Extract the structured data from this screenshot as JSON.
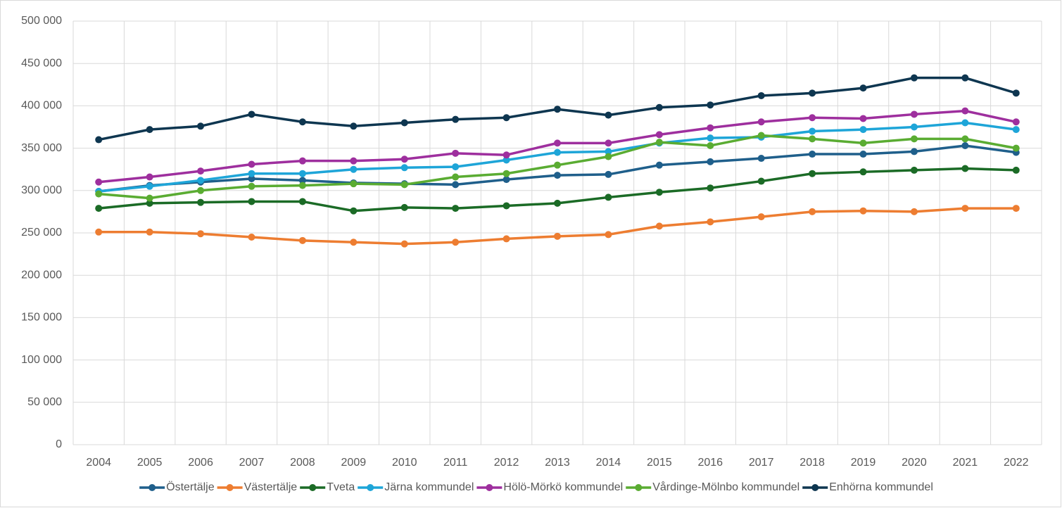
{
  "chart_data": {
    "type": "line",
    "categories": [
      "2004",
      "2005",
      "2006",
      "2007",
      "2008",
      "2009",
      "2010",
      "2011",
      "2012",
      "2013",
      "2014",
      "2015",
      "2016",
      "2017",
      "2018",
      "2019",
      "2020",
      "2021",
      "2022"
    ],
    "ylim": [
      0,
      500000
    ],
    "yticks": [
      0,
      {
        "value": 50000,
        "label": "50 000"
      },
      {
        "value": 100000,
        "label": "100 000"
      },
      {
        "value": 150000,
        "label": "150 000"
      },
      {
        "value": 200000,
        "label": "200 000"
      },
      {
        "value": 250000,
        "label": "250 000"
      },
      {
        "value": 300000,
        "label": "300 000"
      },
      {
        "value": 350000,
        "label": "350 000"
      },
      {
        "value": 400000,
        "label": "400 000"
      },
      {
        "value": 450000,
        "label": "450 000"
      },
      {
        "value": 500000,
        "label": "500 000"
      }
    ],
    "grid": true,
    "legend": "bottom",
    "series": [
      {
        "name": "Östertälje",
        "color": "#1f5f8b",
        "values": [
          299000,
          306000,
          310000,
          314000,
          312000,
          309000,
          308000,
          307000,
          313000,
          318000,
          319000,
          330000,
          334000,
          338000,
          343000,
          343000,
          346000,
          353000,
          345000
        ]
      },
      {
        "name": "Västertälje",
        "color": "#ed7d31",
        "values": [
          251000,
          251000,
          249000,
          245000,
          241000,
          239000,
          237000,
          239000,
          243000,
          246000,
          248000,
          258000,
          263000,
          269000,
          275000,
          276000,
          275000,
          279000,
          279000
        ]
      },
      {
        "name": "Tveta",
        "color": "#1b6b26",
        "values": [
          279000,
          285000,
          286000,
          287000,
          287000,
          276000,
          280000,
          279000,
          282000,
          285000,
          292000,
          298000,
          303000,
          311000,
          320000,
          322000,
          324000,
          326000,
          324000
        ]
      },
      {
        "name": "Järna kommundel",
        "color": "#1ea5d8",
        "values": [
          299000,
          305000,
          312000,
          320000,
          320000,
          325000,
          327000,
          328000,
          336000,
          345000,
          346000,
          356000,
          362000,
          363000,
          370000,
          372000,
          375000,
          380000,
          372000
        ]
      },
      {
        "name": "Hölö-Mörkö kommundel",
        "color": "#9e2f9e",
        "values": [
          310000,
          316000,
          323000,
          331000,
          335000,
          335000,
          337000,
          344000,
          342000,
          356000,
          356000,
          366000,
          374000,
          381000,
          386000,
          385000,
          390000,
          394000,
          381000
        ]
      },
      {
        "name": "Vårdinge-Mölnbo kommundel",
        "color": "#5aac32",
        "values": [
          296000,
          291000,
          300000,
          305000,
          306000,
          308000,
          307000,
          316000,
          320000,
          330000,
          340000,
          357000,
          353000,
          365000,
          361000,
          356000,
          361000,
          361000,
          350000
        ]
      },
      {
        "name": "Enhörna kommundel",
        "color": "#0e3650",
        "values": [
          360000,
          372000,
          376000,
          390000,
          381000,
          376000,
          380000,
          384000,
          386000,
          396000,
          389000,
          398000,
          401000,
          412000,
          415000,
          421000,
          433000,
          433000,
          415000
        ]
      }
    ]
  }
}
